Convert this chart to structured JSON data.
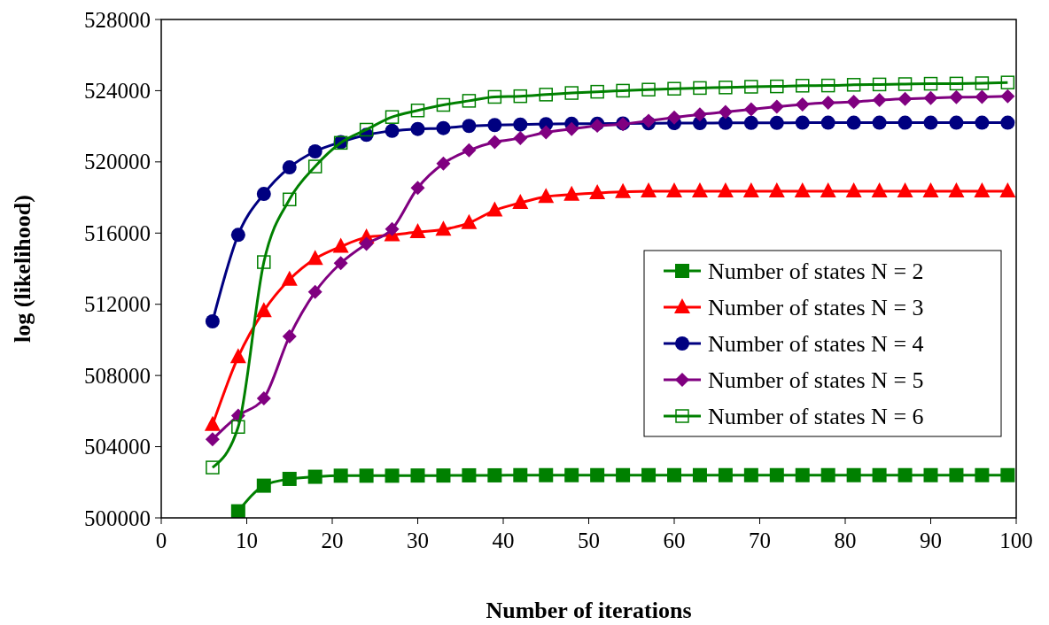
{
  "chart_data": {
    "type": "line",
    "xlabel": "Number of iterations",
    "ylabel": "log (likelihood)",
    "x": [
      6,
      9,
      12,
      15,
      18,
      21,
      24,
      27,
      30,
      33,
      36,
      39,
      42,
      45,
      48,
      51,
      54,
      57,
      60,
      63,
      66,
      69,
      72,
      75,
      78,
      81,
      84,
      87,
      90,
      93,
      96,
      99
    ],
    "xlim": [
      0,
      100
    ],
    "xticks": [
      0,
      10,
      20,
      30,
      40,
      50,
      60,
      70,
      80,
      90,
      100
    ],
    "ylim": [
      500000,
      528000
    ],
    "yticks": [
      500000,
      504000,
      508000,
      512000,
      516000,
      520000,
      524000,
      528000
    ],
    "grid": false,
    "legend": "right",
    "line_style": "solid",
    "series": [
      {
        "name": "Number of states N = 2",
        "color": "#008000",
        "marker": "square",
        "values": [
          null,
          500370,
          501810,
          502190,
          502310,
          502370,
          502370,
          502370,
          502380,
          502380,
          502390,
          502390,
          502400,
          502400,
          502400,
          502400,
          502400,
          502400,
          502400,
          502400,
          502400,
          502400,
          502400,
          502400,
          502400,
          502400,
          502400,
          502400,
          502400,
          502400,
          502400,
          502400
        ]
      },
      {
        "name": "Number of states N = 3",
        "color": "#ff0000",
        "marker": "triangle",
        "values": [
          505240,
          509040,
          511630,
          513390,
          514560,
          515240,
          515760,
          515890,
          516060,
          516200,
          516570,
          517280,
          517700,
          518040,
          518160,
          518250,
          518310,
          518350,
          518350,
          518350,
          518350,
          518350,
          518350,
          518350,
          518350,
          518350,
          518350,
          518350,
          518350,
          518350,
          518350,
          518350
        ]
      },
      {
        "name": "Number of states N = 4",
        "color": "#000080",
        "marker": "circle",
        "values": [
          511040,
          515900,
          518200,
          519690,
          520590,
          521110,
          521520,
          521740,
          521850,
          521900,
          522020,
          522070,
          522100,
          522120,
          522140,
          522150,
          522160,
          522170,
          522180,
          522180,
          522190,
          522190,
          522190,
          522200,
          522200,
          522200,
          522200,
          522200,
          522200,
          522200,
          522200,
          522200
        ]
      },
      {
        "name": "Number of states N = 5",
        "color": "#800080",
        "marker": "diamond",
        "values": [
          504410,
          505740,
          506720,
          510200,
          512690,
          514310,
          515390,
          516220,
          518540,
          519910,
          520650,
          521110,
          521330,
          521660,
          521850,
          522030,
          522120,
          522310,
          522490,
          522670,
          522800,
          522950,
          523100,
          523230,
          523320,
          523370,
          523470,
          523540,
          523590,
          523630,
          523650,
          523690
        ]
      },
      {
        "name": "Number of states N = 6",
        "color": "#008000",
        "marker": "square-open",
        "values": [
          502830,
          505110,
          514370,
          517890,
          519740,
          521070,
          521810,
          522520,
          522890,
          523200,
          523430,
          523650,
          523690,
          523780,
          523870,
          523940,
          524000,
          524060,
          524110,
          524150,
          524180,
          524220,
          524240,
          524280,
          524290,
          524330,
          524350,
          524370,
          524390,
          524400,
          524420,
          524460
        ]
      }
    ]
  }
}
